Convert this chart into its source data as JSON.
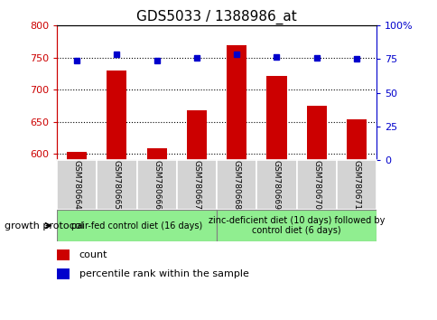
{
  "title": "GDS5033 / 1388986_at",
  "samples": [
    "GSM780664",
    "GSM780665",
    "GSM780666",
    "GSM780667",
    "GSM780668",
    "GSM780669",
    "GSM780670",
    "GSM780671"
  ],
  "counts": [
    603,
    730,
    608,
    668,
    770,
    722,
    675,
    653
  ],
  "percentiles": [
    74,
    79,
    74,
    76,
    79,
    77,
    76,
    75
  ],
  "ylim_left": [
    590,
    800
  ],
  "ylim_right": [
    0,
    100
  ],
  "yticks_left": [
    600,
    650,
    700,
    750,
    800
  ],
  "yticks_right": [
    0,
    25,
    50,
    75,
    100
  ],
  "bar_color": "#cc0000",
  "dot_color": "#0000cc",
  "bar_width": 0.5,
  "group1_label": "pair-fed control diet (16 days)",
  "group2_label": "zinc-deficient diet (10 days) followed by\ncontrol diet (6 days)",
  "group1_indices": [
    0,
    1,
    2,
    3
  ],
  "group2_indices": [
    4,
    5,
    6,
    7
  ],
  "group1_color": "#90ee90",
  "group2_color": "#90ee90",
  "sample_box_color": "#d3d3d3",
  "protocol_label": "growth protocol",
  "legend_count_label": "count",
  "legend_pct_label": "percentile rank within the sample",
  "title_fontsize": 11,
  "tick_fontsize": 8,
  "sample_fontsize": 6.5,
  "group_fontsize": 7,
  "legend_fontsize": 8,
  "protocol_fontsize": 8
}
